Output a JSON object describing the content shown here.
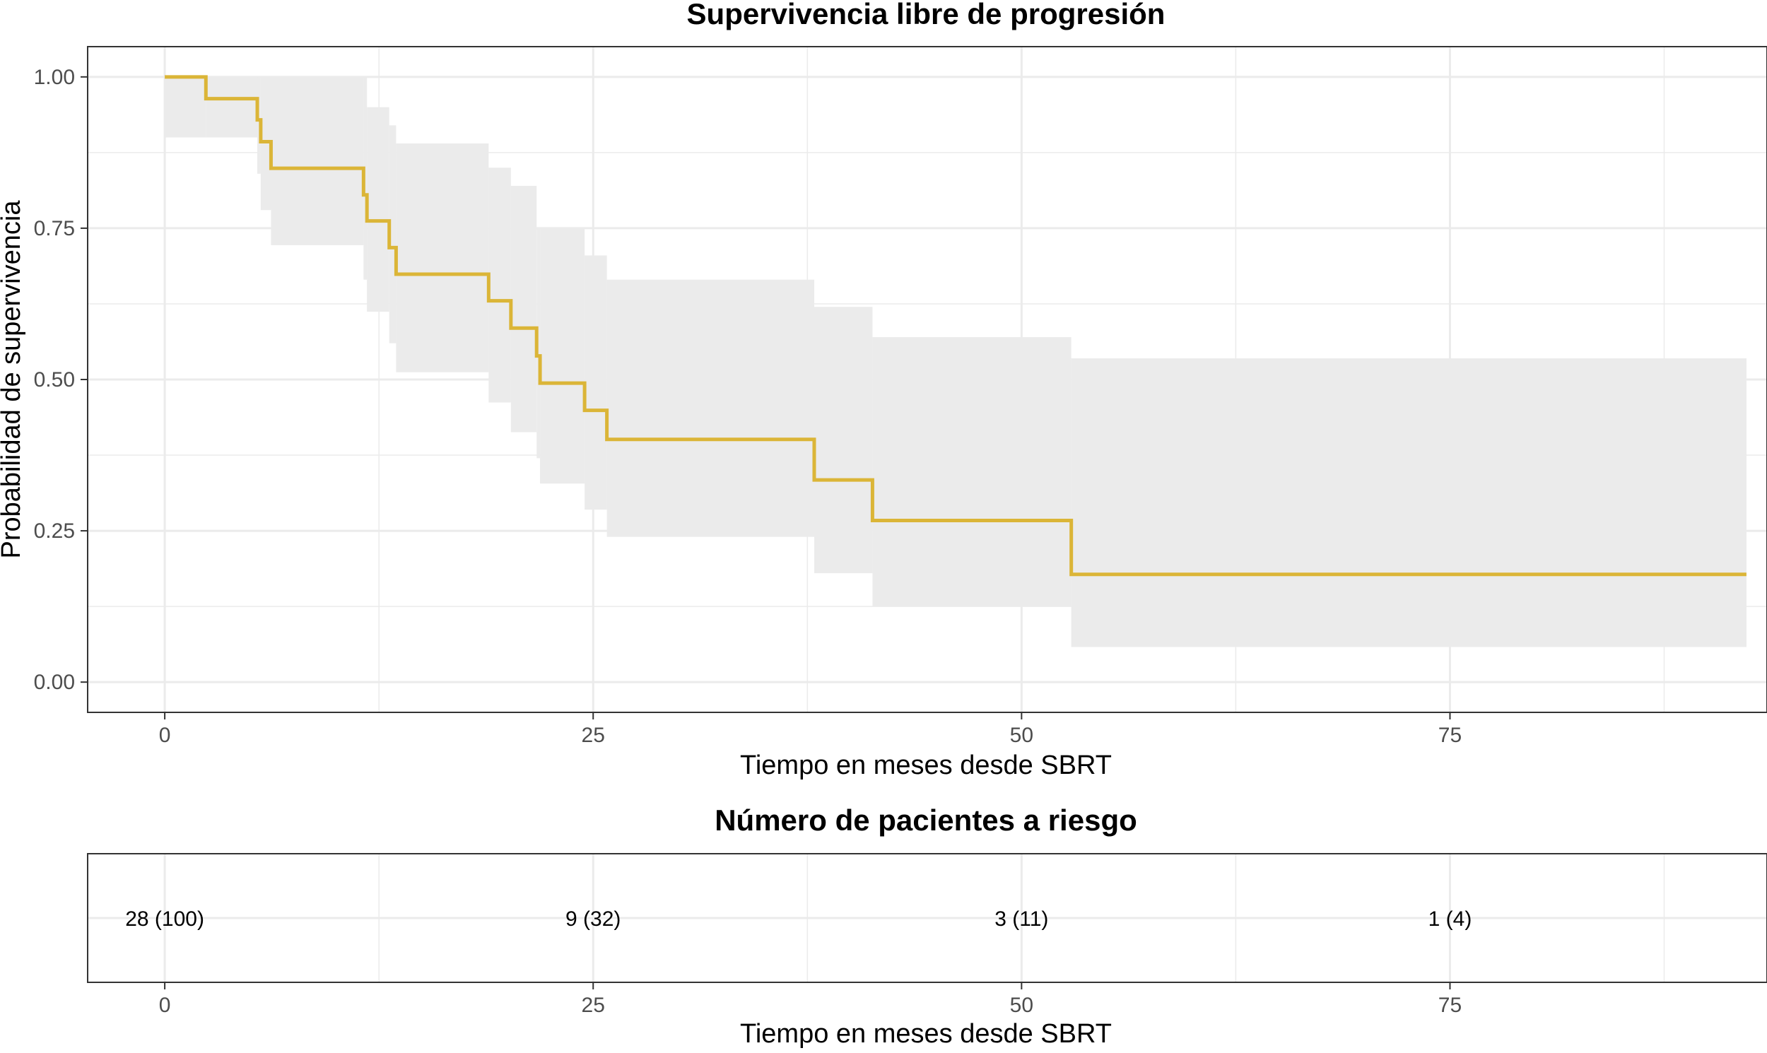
{
  "chart_data": [
    {
      "type": "line",
      "subtype": "kaplan-meier step curve with confidence band",
      "title": "Supervivencia libre de progresión",
      "xlabel": "Tiempo en meses desde SBRT",
      "ylabel": "Probabilidad de supervivencia",
      "xlim": [
        -4.5,
        93.5
      ],
      "ylim": [
        -0.05,
        1.05
      ],
      "x_ticks": [
        0,
        25,
        50,
        75
      ],
      "x_tick_labels": [
        "0",
        "25",
        "50",
        "75"
      ],
      "y_ticks": [
        0,
        0.25,
        0.5,
        0.75,
        1.0
      ],
      "y_tick_labels": [
        "0.00",
        "0.25",
        "0.50",
        "0.75",
        "1.00"
      ],
      "grid": true,
      "colors": {
        "line": "#DBB537",
        "band": "#EBEBEB",
        "grid": "#EBEBEB",
        "border": "#333333"
      },
      "series": [
        {
          "steps": [
            {
              "t": 0.0,
              "s": 1.0,
              "lo": 0.9,
              "hi": 1.0
            },
            {
              "t": 2.4,
              "s": 0.964,
              "lo": 0.9,
              "hi": 1.0
            },
            {
              "t": 5.4,
              "s": 0.929,
              "lo": 0.84,
              "hi": 1.0
            },
            {
              "t": 5.6,
              "s": 0.893,
              "lo": 0.78,
              "hi": 1.0
            },
            {
              "t": 6.2,
              "s": 0.849,
              "lo": 0.722,
              "hi": 1.0
            },
            {
              "t": 11.6,
              "s": 0.805,
              "lo": 0.665,
              "hi": 1.0
            },
            {
              "t": 11.8,
              "s": 0.762,
              "lo": 0.612,
              "hi": 0.95
            },
            {
              "t": 13.1,
              "s": 0.718,
              "lo": 0.56,
              "hi": 0.92
            },
            {
              "t": 13.5,
              "s": 0.674,
              "lo": 0.512,
              "hi": 0.89
            },
            {
              "t": 18.9,
              "s": 0.63,
              "lo": 0.462,
              "hi": 0.85
            },
            {
              "t": 20.2,
              "s": 0.585,
              "lo": 0.413,
              "hi": 0.82
            },
            {
              "t": 21.7,
              "s": 0.539,
              "lo": 0.37,
              "hi": 0.75
            },
            {
              "t": 21.9,
              "s": 0.494,
              "lo": 0.328,
              "hi": 0.75
            },
            {
              "t": 24.5,
              "s": 0.449,
              "lo": 0.285,
              "hi": 0.705
            },
            {
              "t": 25.8,
              "s": 0.401,
              "lo": 0.24,
              "hi": 0.665
            },
            {
              "t": 37.9,
              "s": 0.334,
              "lo": 0.18,
              "hi": 0.62
            },
            {
              "t": 41.3,
              "s": 0.267,
              "lo": 0.125,
              "hi": 0.57
            },
            {
              "t": 52.9,
              "s": 0.178,
              "lo": 0.058,
              "hi": 0.535
            },
            {
              "t": 92.3,
              "s": 0.178,
              "lo": 0.058,
              "hi": 0.535
            }
          ]
        }
      ]
    },
    {
      "type": "table",
      "title": "Número de pacientes a riesgo",
      "xlabel": "Tiempo en meses desde SBRT",
      "xlim": [
        -4.5,
        93.5
      ],
      "x_ticks": [
        0,
        25,
        50,
        75
      ],
      "x_tick_labels": [
        "0",
        "25",
        "50",
        "75"
      ],
      "cells": [
        {
          "x": 0,
          "label": "28 (100)"
        },
        {
          "x": 25,
          "label": "9 (32)"
        },
        {
          "x": 50,
          "label": "3 (11)"
        },
        {
          "x": 75,
          "label": "1 (4)"
        }
      ]
    }
  ]
}
